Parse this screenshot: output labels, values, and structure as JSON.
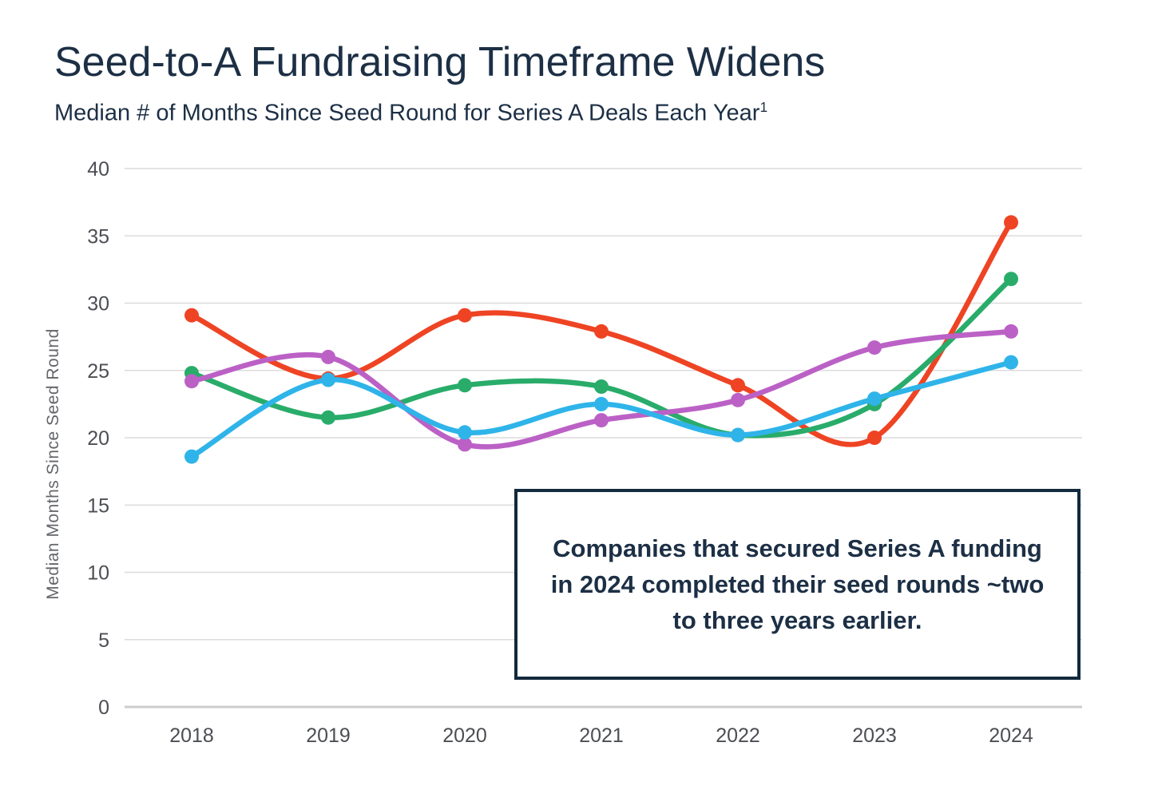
{
  "header": {
    "title": "Seed-to-A Fundraising Timeframe Widens",
    "subtitle": "Median # of Months Since Seed Round for Series A Deals Each Year",
    "subtitle_superscript": "1",
    "title_color": "#1c2f45"
  },
  "annotation": {
    "text": "Companies that secured Series A funding in 2024 completed their seed rounds ~two to three years earlier.",
    "border_color": "#13293c"
  },
  "chart_data": {
    "type": "line",
    "title": "Seed-to-A Fundraising Timeframe Widens",
    "subtitle": "Median # of Months Since Seed Round for Series A Deals Each Year",
    "xlabel": "",
    "ylabel": "Median Months Since Seed Round",
    "categories": [
      "2018",
      "2019",
      "2020",
      "2021",
      "2022",
      "2023",
      "2024"
    ],
    "ylim": [
      0,
      40
    ],
    "yticks": [
      0,
      5,
      10,
      15,
      20,
      25,
      30,
      35,
      40
    ],
    "grid": "horizontal",
    "legend": "none",
    "curve": "smooth",
    "marker_radius": 9,
    "series": [
      {
        "name": "red",
        "color": "#ee4424",
        "values": [
          29.1,
          24.4,
          29.1,
          27.9,
          23.9,
          20.0,
          36.0
        ]
      },
      {
        "name": "green",
        "color": "#29ac6a",
        "values": [
          24.8,
          21.5,
          23.9,
          23.8,
          20.2,
          22.5,
          31.8
        ]
      },
      {
        "name": "purple",
        "color": "#bb61c6",
        "values": [
          24.2,
          26.0,
          19.5,
          21.3,
          22.8,
          26.7,
          27.9
        ]
      },
      {
        "name": "cyan",
        "color": "#2fb4e9",
        "values": [
          18.6,
          24.3,
          20.4,
          22.5,
          20.2,
          22.9,
          25.6
        ]
      }
    ]
  }
}
